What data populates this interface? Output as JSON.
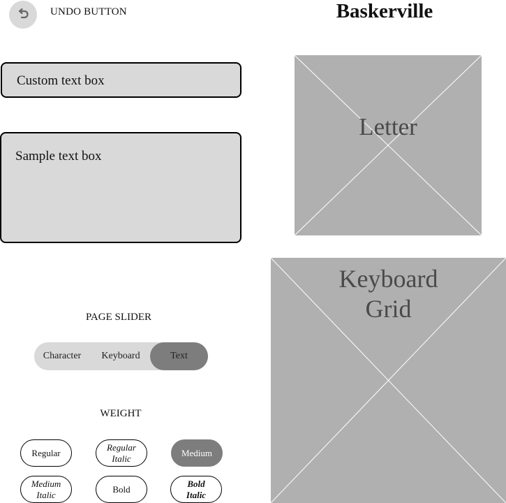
{
  "header": {
    "undo_label": "UNDO BUTTON",
    "title": "Baskerville"
  },
  "text_boxes": {
    "custom": "Custom text box",
    "sample": "Sample text box"
  },
  "placeholders": {
    "letter": "Letter",
    "keyboard_line1": "Keyboard",
    "keyboard_line2": "Grid"
  },
  "page_slider": {
    "title": "PAGE SLIDER",
    "options": [
      "Character",
      "Keyboard",
      "Text"
    ],
    "selected": "Text"
  },
  "weight": {
    "title": "WEIGHT",
    "options": [
      {
        "line1": "Regular",
        "line2": ""
      },
      {
        "line1": "Regular",
        "line2": "Italic"
      },
      {
        "line1": "Medium",
        "line2": ""
      },
      {
        "line1": "Medium",
        "line2": "Italic"
      },
      {
        "line1": "Bold",
        "line2": ""
      },
      {
        "line1": "Bold",
        "line2": "Italic"
      }
    ],
    "selected": "Medium"
  },
  "colors": {
    "box_fill": "#d9d9d9",
    "placeholder_fill": "#b0b0b0",
    "selected_fill": "#7d7d7d"
  },
  "icons": {
    "undo": "undo-arrow-icon"
  }
}
